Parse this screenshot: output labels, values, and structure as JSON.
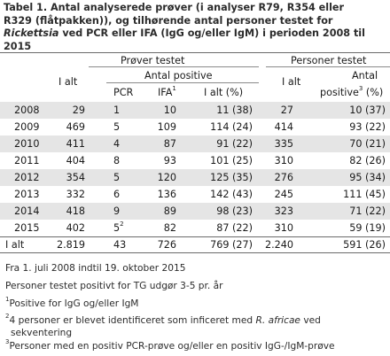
{
  "title": {
    "line1": "Tabel 1. Antal analyserede prøver (i analyser R79, R354 eller",
    "line2": "R329 (flåtpakken)), og tilhørende antal personer testet for",
    "line3_italic": "Rickettsia",
    "line3_rest": " ved PCR eller IFA (IgG og/eller IgM) i perioden 2008 til",
    "line4": "2015"
  },
  "header": {
    "group_samples": "Prøver testet",
    "group_persons": "Personer testet",
    "total": "I alt",
    "antal_positive": "Antal positive",
    "pcr": "PCR",
    "ifa": "IFA",
    "ifa_sup": "1",
    "total_pct": "I alt (%)",
    "persons_total": "I alt",
    "antal": "Antal",
    "positive": "positive",
    "positive_sup": "3",
    "positive_pct": " (%)"
  },
  "rows": [
    {
      "year": "2008",
      "total": "29",
      "pcr": "1",
      "pcr_sup": "",
      "ifa": "10",
      "pos": "11 (38)",
      "ptotal": "27",
      "ppos": "10 (37)"
    },
    {
      "year": "2009",
      "total": "469",
      "pcr": "5",
      "pcr_sup": "",
      "ifa": "109",
      "pos": "114 (24)",
      "ptotal": "414",
      "ppos": "93 (22)"
    },
    {
      "year": "2010",
      "total": "411",
      "pcr": "4",
      "pcr_sup": "",
      "ifa": "87",
      "pos": "91 (22)",
      "ptotal": "335",
      "ppos": "70 (21)"
    },
    {
      "year": "2011",
      "total": "404",
      "pcr": "8",
      "pcr_sup": "",
      "ifa": "93",
      "pos": "101 (25)",
      "ptotal": "310",
      "ppos": "82 (26)"
    },
    {
      "year": "2012",
      "total": "354",
      "pcr": "5",
      "pcr_sup": "",
      "ifa": "120",
      "pos": "125 (35)",
      "ptotal": "276",
      "ppos": "95 (34)"
    },
    {
      "year": "2013",
      "total": "332",
      "pcr": "6",
      "pcr_sup": "",
      "ifa": "136",
      "pos": "142 (43)",
      "ptotal": "245",
      "ppos": "111 (45)"
    },
    {
      "year": "2014",
      "total": "418",
      "pcr": "9",
      "pcr_sup": "",
      "ifa": "89",
      "pos": "98 (23)",
      "ptotal": "323",
      "ppos": "71 (22)"
    },
    {
      "year": "2015",
      "total": "402",
      "pcr": "5",
      "pcr_sup": "2",
      "ifa": "82",
      "pos": "87 (22)",
      "ptotal": "310",
      "ppos": "59 (19)"
    }
  ],
  "totals": {
    "year": "I alt",
    "total": "2.819",
    "pcr": "43",
    "ifa": "726",
    "pos": "769 (27)",
    "ptotal": "2.240",
    "ppos": "591 (26)"
  },
  "footnotes": {
    "f1": "Fra 1. juli 2008 indtil 19. oktober 2015",
    "f2": "Personer testet positivt for TG udgør 3-5 pr. år",
    "f3_sup": "1",
    "f3": "Positive for IgG og/eller IgM",
    "f4_sup": "2",
    "f4_a": "4 personer er blevet identificeret som inficeret med ",
    "f4_italic": "R. africae",
    "f4_b": " ved",
    "f4_c": "sekventering",
    "f5_sup": "3",
    "f5": "Personer med en positiv PCR-prøve og/eller en positiv IgG-/IgM-prøve"
  }
}
